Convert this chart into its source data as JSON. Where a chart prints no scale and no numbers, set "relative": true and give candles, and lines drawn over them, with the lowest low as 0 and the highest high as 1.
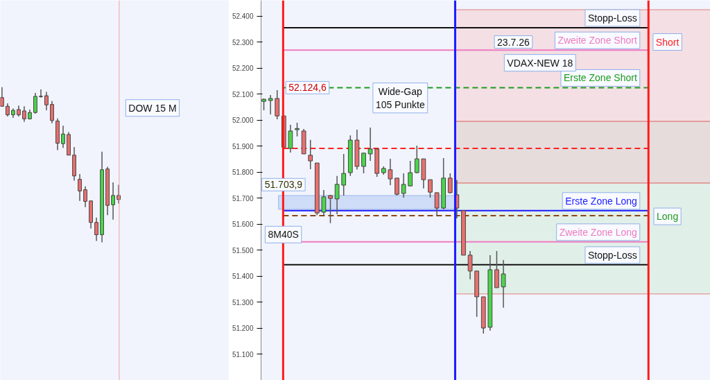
{
  "chart_data": [
    {
      "type": "candlestick",
      "relative": true,
      "tick_labels": false,
      "categories": [
        null,
        null,
        null,
        null,
        null,
        null,
        null,
        null,
        null,
        null,
        null,
        null,
        null,
        null,
        null,
        null,
        null,
        null,
        null,
        null,
        null,
        null
      ],
      "ohlc": [
        [
          0.933,
          1.0,
          0.877,
          0.877
        ],
        [
          0.877,
          0.896,
          0.811,
          0.822
        ],
        [
          0.822,
          0.862,
          0.802,
          0.851
        ],
        [
          0.856,
          0.881,
          0.811,
          0.822
        ],
        [
          0.847,
          0.877,
          0.777,
          0.796
        ],
        [
          0.796,
          0.856,
          0.792,
          0.837
        ],
        [
          0.837,
          0.963,
          0.829,
          0.941
        ],
        [
          0.941,
          0.985,
          0.933,
          0.939
        ],
        [
          0.945,
          0.97,
          0.851,
          0.886
        ],
        [
          0.889,
          0.911,
          0.767,
          0.785
        ],
        [
          0.782,
          0.799,
          0.594,
          0.639
        ],
        [
          0.636,
          0.752,
          0.609,
          0.698
        ],
        [
          0.695,
          0.71,
          0.562,
          0.562
        ],
        [
          0.562,
          0.614,
          0.398,
          0.428
        ],
        [
          0.406,
          0.44,
          0.267,
          0.331
        ],
        [
          0.339,
          0.361,
          0.227,
          0.264
        ],
        [
          0.267,
          0.267,
          0.089,
          0.128
        ],
        [
          0.128,
          0.16,
          0.009,
          0.049
        ],
        [
          0.049,
          0.584,
          0.0,
          0.468
        ],
        [
          0.473,
          0.487,
          0.175,
          0.238
        ],
        [
          0.242,
          0.386,
          0.146,
          0.302
        ],
        [
          0.302,
          0.371,
          0.25,
          0.276
        ]
      ],
      "colors": [
        "#e8706f",
        "#e8706f",
        "#4cd44c",
        "#e8706f",
        "#e8706f",
        "#4cd44c",
        "#4cd44c",
        "#e8706f",
        "#e8706f",
        "#e8706f",
        "#e8706f",
        "#4cd44c",
        "#e8706f",
        "#e8706f",
        "#e8706f",
        "#e8706f",
        "#e8706f",
        "#e8706f",
        "#4cd44c",
        "#e8706f",
        "#4cd44c",
        "#e8706f"
      ],
      "annotations": [
        "DOW 15 M"
      ]
    },
    {
      "type": "candlestick",
      "tick_labels": "y",
      "categories": [
        null,
        null,
        null,
        null,
        null,
        null,
        null,
        null,
        null,
        null,
        null,
        null,
        null,
        null,
        null,
        null,
        null,
        null,
        null,
        null,
        null,
        null,
        null,
        null,
        null,
        null,
        null,
        null,
        null,
        null,
        null,
        null,
        null,
        null,
        null,
        null,
        null
      ],
      "ohlc": [
        [
          52072,
          52083,
          52038,
          52080
        ],
        [
          52075,
          52096,
          52022,
          52083
        ],
        [
          52083,
          52115,
          52003,
          52016
        ],
        [
          52016,
          52016,
          51896,
          51896
        ],
        [
          51891,
          51982,
          51875,
          51958
        ],
        [
          51965,
          51990,
          51937,
          51963
        ],
        [
          51958,
          51966,
          51870,
          51870
        ],
        [
          51865,
          51924,
          51811,
          51843
        ],
        [
          51835,
          51835,
          51635,
          51643
        ],
        [
          51646,
          51731,
          51635,
          51705
        ],
        [
          51710,
          51713,
          51604,
          51699
        ],
        [
          51697,
          51785,
          51638,
          51753
        ],
        [
          51750,
          51870,
          51710,
          51795
        ],
        [
          51798,
          51941,
          51785,
          51923
        ],
        [
          51923,
          51963,
          51810,
          51822
        ],
        [
          51822,
          51873,
          51795,
          51873
        ],
        [
          51870,
          51971,
          51843,
          51889
        ],
        [
          51889,
          51891,
          51782,
          51795
        ],
        [
          51798,
          51822,
          51790,
          51814
        ],
        [
          51809,
          51851,
          51750,
          51774
        ],
        [
          51777,
          51777,
          51710,
          51715
        ],
        [
          51718,
          51795,
          51702,
          51753
        ],
        [
          51747,
          51843,
          51745,
          51798
        ],
        [
          51798,
          51902,
          51795,
          51851
        ],
        [
          51851,
          51851,
          51737,
          51771
        ],
        [
          51771,
          51771,
          51702,
          51723
        ],
        [
          51721,
          51721,
          51630,
          51662
        ],
        [
          51662,
          51854,
          51657,
          51777
        ],
        [
          51777,
          51795,
          51718,
          51721
        ],
        [
          51713,
          51769,
          51622,
          51662
        ],
        [
          51652,
          51652,
          51481,
          51481
        ],
        [
          51481,
          51497,
          51388,
          51420
        ],
        [
          51420,
          51420,
          51244,
          51321
        ],
        [
          51321,
          51321,
          51180,
          51201
        ],
        [
          51204,
          51481,
          51191,
          51425
        ],
        [
          51425,
          51497,
          51356,
          51356
        ],
        [
          51359,
          51462,
          51279,
          51409
        ]
      ],
      "colors": [
        "#4cd44c",
        "#4cd44c",
        "#e8706f",
        "#e8706f",
        "#4cd44c",
        "#4cd44c",
        "#e8706f",
        "#e8706f",
        "#e8706f",
        "#4cd44c",
        "#e8706f",
        "#4cd44c",
        "#4cd44c",
        "#4cd44c",
        "#e8706f",
        "#4cd44c",
        "#4cd44c",
        "#e8706f",
        "#4cd44c",
        "#e8706f",
        "#e8706f",
        "#4cd44c",
        "#4cd44c",
        "#4cd44c",
        "#e8706f",
        "#e8706f",
        "#e8706f",
        "#4cd44c",
        "#e8706f",
        "#e8706f",
        "#e8706f",
        "#e8706f",
        "#e8706f",
        "#e8706f",
        "#4cd44c",
        "#e8706f",
        "#4cd44c"
      ],
      "ylim": [
        51000,
        52460
      ],
      "yticks": [
        {
          "value": 51100,
          "label": "51.100"
        },
        {
          "value": 51200,
          "label": "51.200"
        },
        {
          "value": 51300,
          "label": "51.300"
        },
        {
          "value": 51400,
          "label": "51.400"
        },
        {
          "value": 51500,
          "label": "51.500"
        },
        {
          "value": 51600,
          "label": "51.600"
        },
        {
          "value": 51700,
          "label": "51.700"
        },
        {
          "value": 51800,
          "label": "51.800"
        },
        {
          "value": 51900,
          "label": "51.900"
        },
        {
          "value": 52000,
          "label": "52.000"
        },
        {
          "value": 52100,
          "label": "52.100"
        },
        {
          "value": 52200,
          "label": "52.200"
        },
        {
          "value": 52300,
          "label": "52.300"
        },
        {
          "value": 52400,
          "label": "52.400"
        }
      ],
      "ref_lines": [
        {
          "axis": "y",
          "value": 52355,
          "label": "Stopp-Loss",
          "color": "#111111",
          "line_style": "solid"
        },
        {
          "axis": "y",
          "value": 52269,
          "label": "Zweite Zone Short",
          "color": "#f07ac0",
          "line_style": "solid"
        },
        {
          "axis": "y",
          "value": 52124.6,
          "label": "Erste Zone Short",
          "color": "#1f9a1f",
          "line_style": "dashed"
        },
        {
          "axis": "y",
          "value": 51891,
          "label": null,
          "color": "#ff2020",
          "line_style": "dashed"
        },
        {
          "axis": "y",
          "value": 51652,
          "label": "Erste Zone Long",
          "color": "#1a1aff",
          "line_style": "solid"
        },
        {
          "axis": "y",
          "value": 51633,
          "label": null,
          "color": "#8b4513",
          "line_style": "dashed"
        },
        {
          "axis": "y",
          "value": 51532,
          "label": "Zweite Zone Long",
          "color": "#f07ac0",
          "line_style": "solid"
        },
        {
          "axis": "y",
          "value": 51444,
          "label": "Stopp-Loss",
          "color": "#111111",
          "line_style": "solid"
        }
      ],
      "bands": [
        {
          "axis": "y",
          "from": 51657,
          "to": 51710,
          "label": null,
          "color": "#cfdcf7"
        },
        {
          "axis": "y",
          "from": 51995,
          "to": 52424,
          "label": null,
          "color": "#f6c9cb"
        },
        {
          "axis": "y",
          "from": 51758,
          "to": 51995,
          "label": null,
          "color": "#dcc4bc"
        },
        {
          "axis": "y",
          "from": 51332,
          "to": 51758,
          "label": null,
          "color": "#d2e9d6"
        }
      ],
      "annotations": [
        {
          "text": "52.124,6",
          "y": 52124.6
        },
        {
          "text": "51.703,9",
          "y": 51703.9
        },
        "8M40S",
        "Wide-Gap\n105 Punkte",
        "23.7.26",
        "VDAX-NEW 18",
        "Short",
        "Long"
      ]
    }
  ]
}
